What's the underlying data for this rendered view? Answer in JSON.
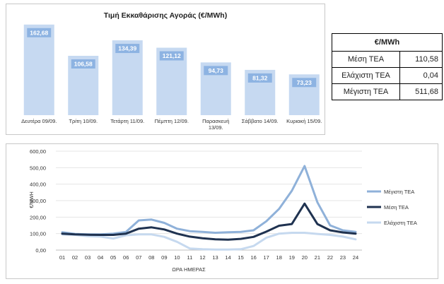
{
  "chart_data": [
    {
      "type": "bar",
      "title": "Τιμή Εκκαθάρισης Αγοράς (€/MWh)",
      "categories": [
        "Δευτέρα 09/09.",
        "Τρίτη 10/09.",
        "Τετάρτη 11/09.",
        "Πέμπτη 12/09.",
        "Παρασκευή 13/09.",
        "Σάββατο 14/09.",
        "Κυριακή 15/09."
      ],
      "category_lines": [
        [
          "Δευτέρα 09/09."
        ],
        [
          "Τρίτη 10/09."
        ],
        [
          "Τετάρτη 11/09."
        ],
        [
          "Πέμπτη 12/09."
        ],
        [
          "Παρασκευή",
          "13/09."
        ],
        [
          "Σάββατο 14/09."
        ],
        [
          "Κυριακή 15/09."
        ]
      ],
      "values": [
        162.68,
        106.58,
        134.39,
        121.12,
        94.73,
        81.32,
        73.23
      ],
      "value_labels": [
        "162,68",
        "106,58",
        "134,39",
        "121,12",
        "94,73",
        "81,32",
        "73,23"
      ],
      "ylim": [
        0,
        170
      ],
      "bar_color": "#c6d9f1",
      "label_color": "#8db3e2"
    },
    {
      "type": "line",
      "x": [
        "01",
        "02",
        "03",
        "04",
        "05",
        "06",
        "07",
        "08",
        "09",
        "10",
        "11",
        "12",
        "13",
        "14",
        "15",
        "16",
        "17",
        "18",
        "19",
        "20",
        "21",
        "22",
        "23",
        "24"
      ],
      "xlabel": "ΩΡΑ ΗΜΕΡΑΣ",
      "ylabel": "€/MWH",
      "ylim": [
        0,
        600
      ],
      "yticks": [
        "0,00",
        "100,00",
        "200,00",
        "300,00",
        "400,00",
        "500,00",
        "600,00"
      ],
      "grid": true,
      "legend": "right",
      "series": [
        {
          "name": "Μέγιστη ΤΕΑ",
          "color": "#8fb1d9",
          "values": [
            108,
            98,
            95,
            95,
            100,
            110,
            180,
            185,
            165,
            130,
            115,
            110,
            105,
            108,
            110,
            120,
            175,
            250,
            360,
            510,
            290,
            150,
            120,
            110
          ]
        },
        {
          "name": "Μέση ΤΕΑ",
          "color": "#1f3250",
          "values": [
            100,
            95,
            93,
            92,
            92,
            100,
            130,
            138,
            125,
            100,
            82,
            72,
            65,
            63,
            68,
            80,
            112,
            148,
            158,
            282,
            158,
            120,
            107,
            100
          ]
        },
        {
          "name": "Ελάχιστη ΤΕΑ",
          "color": "#c6d9ef",
          "values": [
            95,
            92,
            85,
            82,
            70,
            90,
            95,
            95,
            80,
            50,
            10,
            5,
            3,
            3,
            5,
            25,
            75,
            100,
            105,
            105,
            98,
            92,
            82,
            65
          ]
        }
      ]
    }
  ],
  "stats_table": {
    "header": "€/MWh",
    "rows": [
      {
        "label": "Μέση ΤΕΑ",
        "value": "110,58"
      },
      {
        "label": "Ελάχιστη ΤΕΑ",
        "value": "0,04"
      },
      {
        "label": "Μέγιστη ΤΕΑ",
        "value": "511,68"
      }
    ]
  }
}
